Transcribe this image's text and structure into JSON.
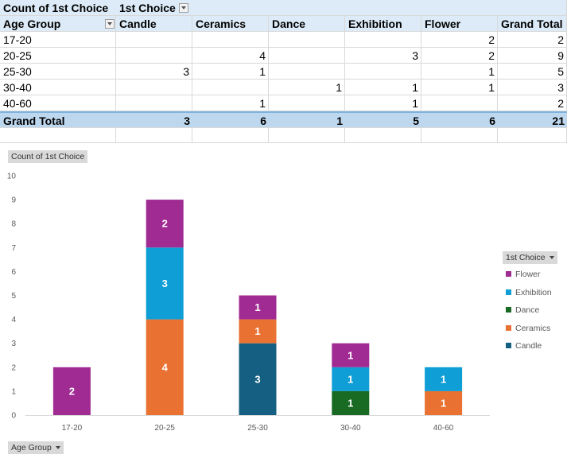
{
  "pivot": {
    "title_value": "Count of 1st Choice",
    "column_field": "1st Choice",
    "row_field": "Age Group",
    "column_headers": [
      "Candle",
      "Ceramics",
      "Dance",
      "Exhibition",
      "Flower",
      "Grand Total"
    ],
    "rows": [
      {
        "label": "17-20",
        "values": [
          "",
          "",
          "",
          "",
          "2",
          "2"
        ]
      },
      {
        "label": "20-25",
        "values": [
          "",
          "4",
          "",
          "3",
          "2",
          "9"
        ]
      },
      {
        "label": "25-30",
        "values": [
          "3",
          "1",
          "",
          "",
          "1",
          "5"
        ]
      },
      {
        "label": "30-40",
        "values": [
          "",
          "",
          "1",
          "1",
          "1",
          "3"
        ]
      },
      {
        "label": "40-60",
        "values": [
          "",
          "1",
          "",
          "1",
          "",
          "2"
        ]
      }
    ],
    "grand_total": {
      "label": "Grand Total",
      "values": [
        "3",
        "6",
        "1",
        "5",
        "6",
        "21"
      ]
    }
  },
  "chart_data": {
    "type": "bar",
    "stacked": true,
    "value_field_button": "Count of 1st Choice",
    "axis_field_button": "Age Group",
    "legend_field_button": "1st Choice",
    "categories": [
      "17-20",
      "20-25",
      "25-30",
      "30-40",
      "40-60"
    ],
    "ylim": [
      0,
      10
    ],
    "yticks": [
      0,
      1,
      2,
      3,
      4,
      5,
      6,
      7,
      8,
      9,
      10
    ],
    "gridlines": false,
    "legend_position": "right",
    "series": [
      {
        "name": "Candle",
        "color": "#156082",
        "values": [
          0,
          0,
          3,
          0,
          0
        ]
      },
      {
        "name": "Ceramics",
        "color": "#e97132",
        "values": [
          0,
          4,
          1,
          0,
          1
        ]
      },
      {
        "name": "Dance",
        "color": "#196b24",
        "values": [
          0,
          0,
          0,
          1,
          0
        ]
      },
      {
        "name": "Exhibition",
        "color": "#0f9ed5",
        "values": [
          0,
          3,
          0,
          1,
          1
        ]
      },
      {
        "name": "Flower",
        "color": "#a02b93",
        "values": [
          2,
          2,
          1,
          1,
          0
        ]
      }
    ],
    "legend_order": [
      "Flower",
      "Exhibition",
      "Dance",
      "Ceramics",
      "Candle"
    ]
  }
}
